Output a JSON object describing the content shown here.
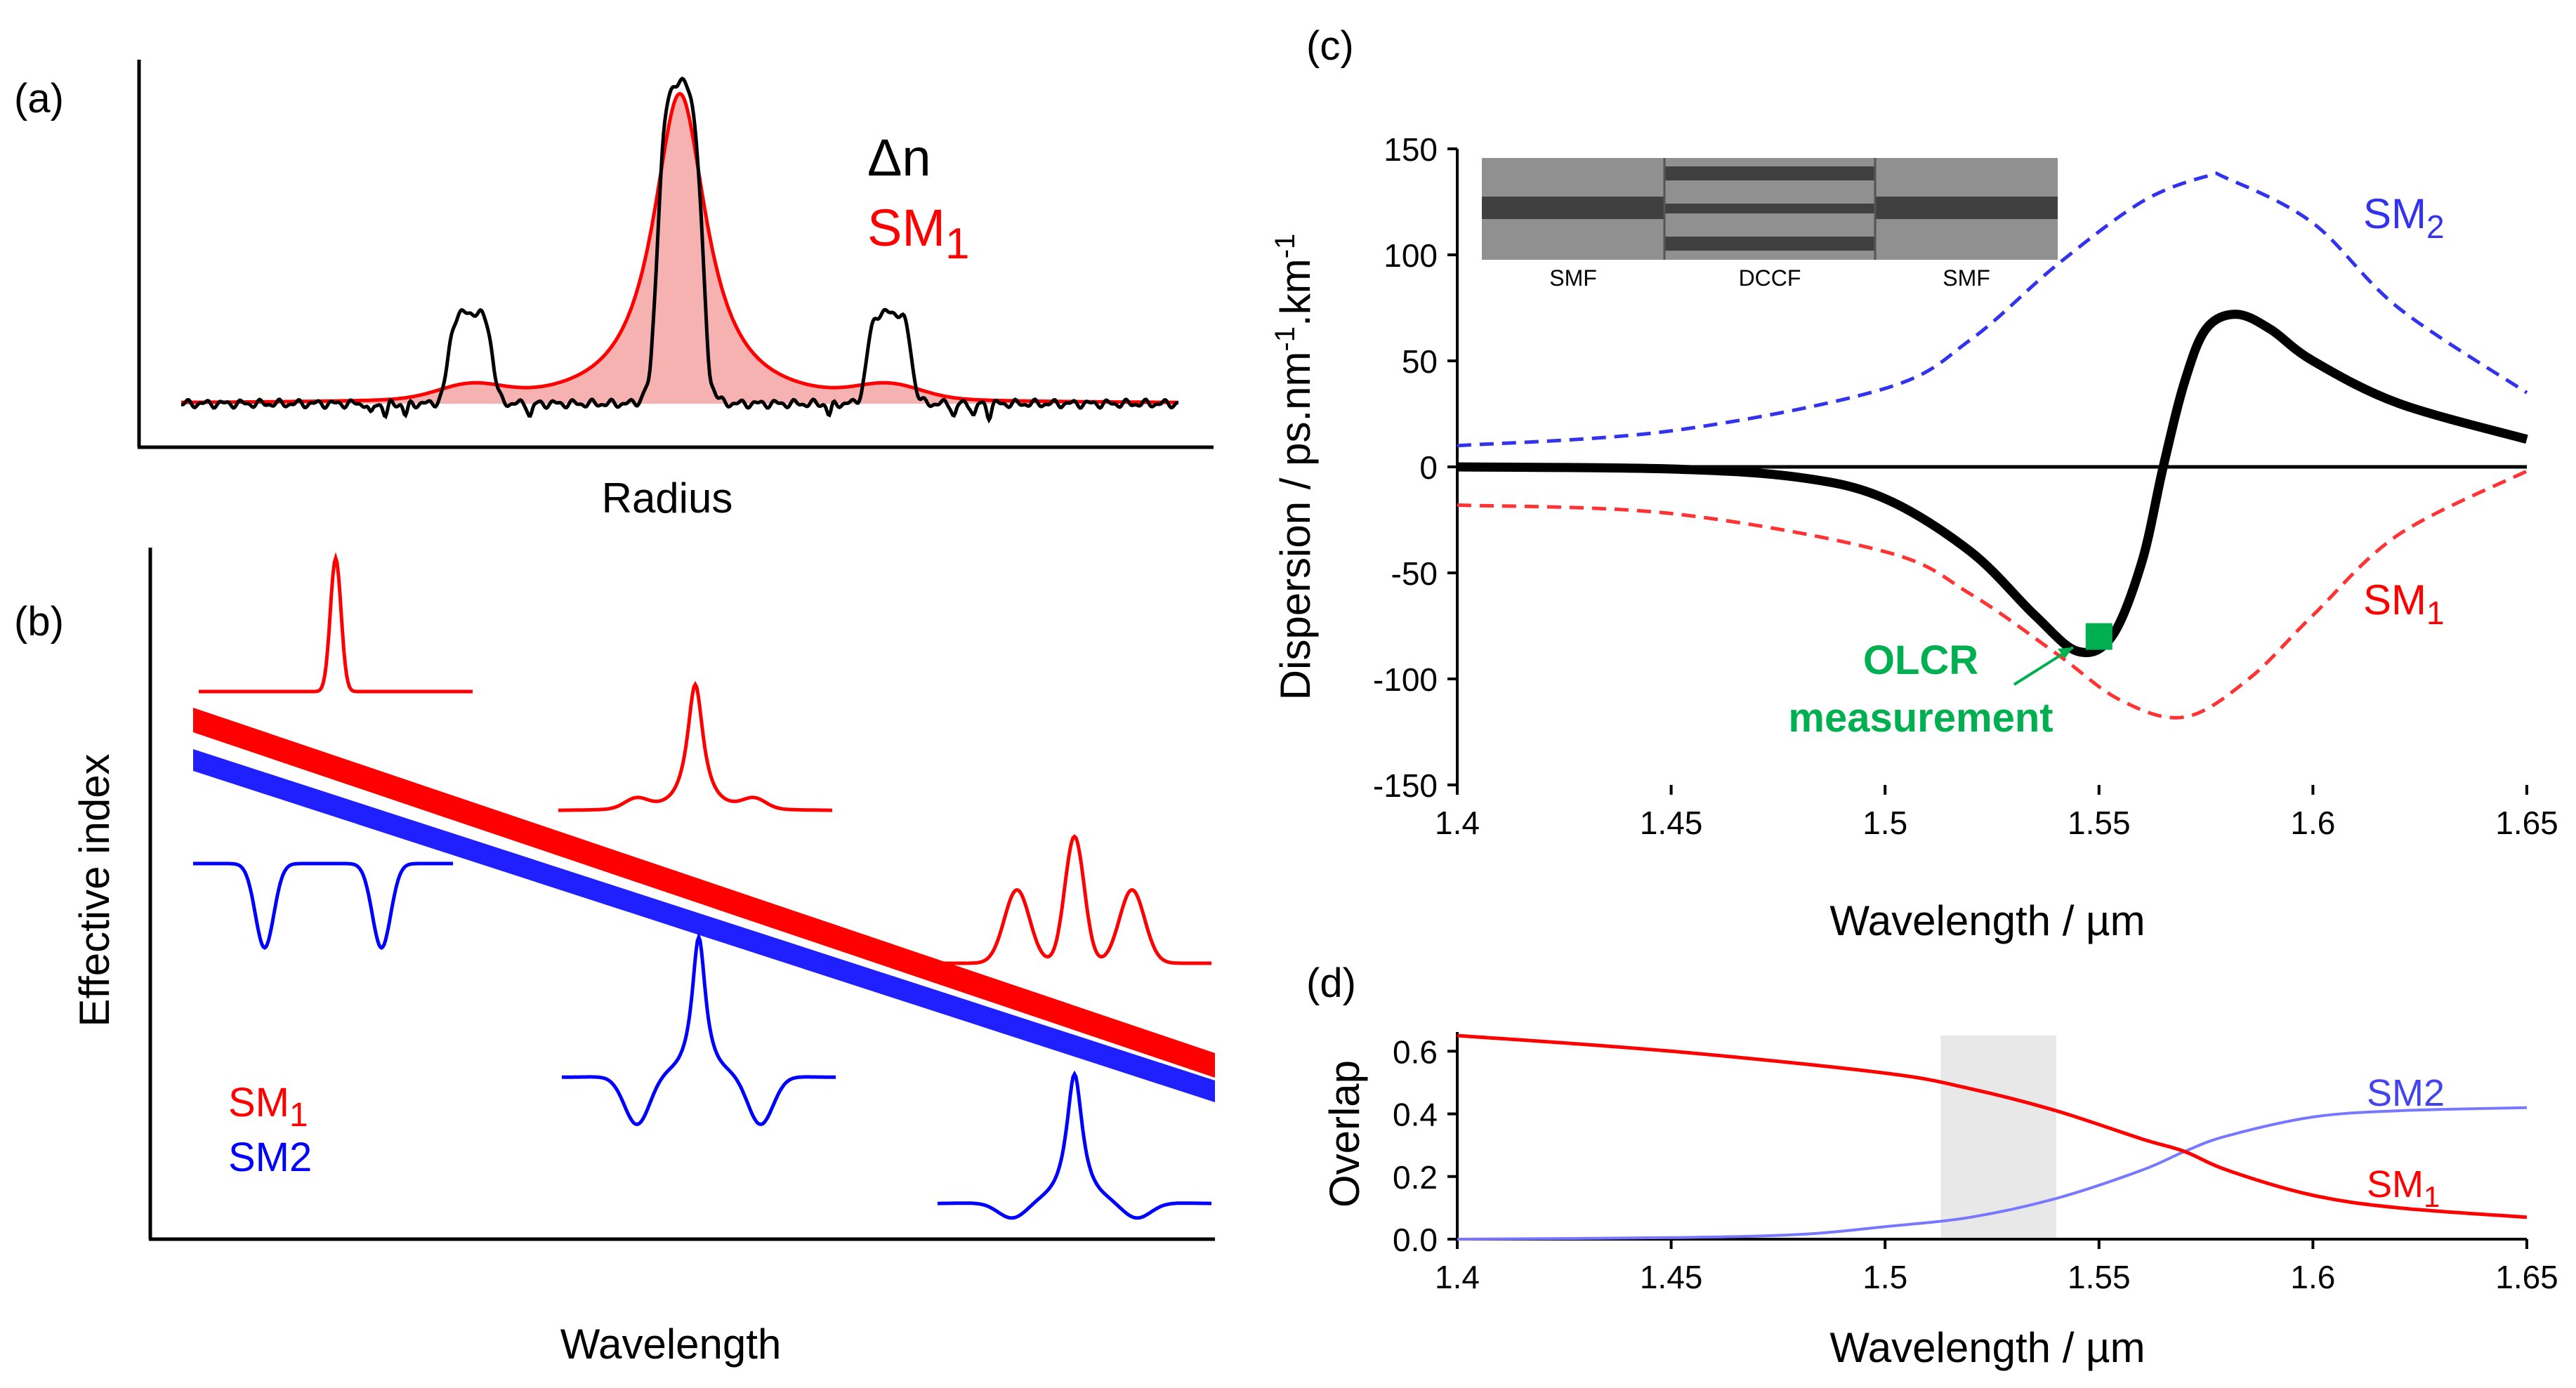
{
  "chart_data": [
    {
      "panel": "(a)",
      "type": "line",
      "title": "",
      "xlabel": "Radius",
      "ylabel": "",
      "legend": [
        "Δn",
        "SM1"
      ],
      "x_range": [
        -1,
        1
      ],
      "series": [
        {
          "name": "Δn",
          "color": "#000000",
          "description_values": {
            "core_level": 1.0,
            "ring_level": 0.28,
            "core_halfwidth": 0.05,
            "ring_center": 0.42,
            "ring_halfwidth": 0.045
          }
        },
        {
          "name": "SM1",
          "color": "#ff0000",
          "fill": "#f4a3a3",
          "description_values": {
            "peak": 0.92,
            "shoulder_level": 0.04
          }
        }
      ]
    },
    {
      "panel": "(b)",
      "type": "line",
      "title": "",
      "xlabel": "Wavelength",
      "ylabel": "Effective index",
      "legend": [
        "SM1",
        "SM2"
      ],
      "series": [
        {
          "name": "SM1",
          "color": "#ff0000",
          "start": 0.87,
          "end": 0.09
        },
        {
          "name": "SM2",
          "color": "#0000ff",
          "start": 0.84,
          "end": 0.06
        }
      ]
    },
    {
      "panel": "(c)",
      "type": "line",
      "title": "",
      "xlabel": "Wavelength / µm",
      "ylabel": "Dispersion  / ps.nm-1.km-1",
      "xlim": [
        1.4,
        1.65
      ],
      "ylim": [
        -150,
        150
      ],
      "xticks": [
        "1.4",
        "1.45",
        "1.5",
        "1.55",
        "1.6",
        "1.65"
      ],
      "yticks": [
        "-150",
        "-100",
        "-50",
        "0",
        "50",
        "100",
        "150"
      ],
      "series": [
        {
          "name": "Total",
          "color": "#000000",
          "style": "solid",
          "x": [
            1.4,
            1.45,
            1.48,
            1.5,
            1.52,
            1.535,
            1.545,
            1.553,
            1.56,
            1.565,
            1.57,
            1.575,
            1.582,
            1.59,
            1.6,
            1.62,
            1.65
          ],
          "y": [
            0,
            -1,
            -5,
            -15,
            -40,
            -70,
            -87,
            -80,
            -45,
            0,
            40,
            65,
            72,
            65,
            50,
            30,
            13
          ]
        },
        {
          "name": "SM2",
          "color": "#3333ee",
          "style": "dashed",
          "x": [
            1.4,
            1.45,
            1.5,
            1.52,
            1.54,
            1.56,
            1.575,
            1.58,
            1.6,
            1.62,
            1.65
          ],
          "y": [
            10,
            17,
            37,
            60,
            95,
            125,
            137,
            136,
            115,
            75,
            35
          ]
        },
        {
          "name": "SM1",
          "color": "#ff3333",
          "style": "dashed",
          "x": [
            1.4,
            1.45,
            1.5,
            1.52,
            1.54,
            1.555,
            1.57,
            1.585,
            1.6,
            1.62,
            1.65
          ],
          "y": [
            -18,
            -22,
            -40,
            -60,
            -88,
            -110,
            -118,
            -100,
            -70,
            -32,
            -2
          ]
        }
      ],
      "marker": {
        "x": 1.55,
        "y": -80,
        "color": "#00b050",
        "label_line1": "OLCR",
        "label_line2": "measurement"
      },
      "inset_labels": [
        "SMF",
        "DCCF",
        "SMF"
      ]
    },
    {
      "panel": "(d)",
      "type": "line",
      "title": "",
      "xlabel": "Wavelength / µm",
      "ylabel": "Overlap",
      "xlim": [
        1.4,
        1.65
      ],
      "ylim": [
        0,
        0.65
      ],
      "xticks": [
        "1.4",
        "1.45",
        "1.5",
        "1.55",
        "1.6",
        "1.65"
      ],
      "yticks": [
        "0.0",
        "0.2",
        "0.4",
        "0.6"
      ],
      "shaded_region": [
        1.513,
        1.54
      ],
      "series": [
        {
          "name": "SM1",
          "color": "#ff0000",
          "x": [
            1.4,
            1.45,
            1.5,
            1.52,
            1.54,
            1.56,
            1.57,
            1.58,
            1.6,
            1.62,
            1.65
          ],
          "y": [
            0.65,
            0.6,
            0.53,
            0.48,
            0.41,
            0.32,
            0.28,
            0.22,
            0.14,
            0.1,
            0.07
          ]
        },
        {
          "name": "SM2",
          "color": "#7777ff",
          "x": [
            1.4,
            1.45,
            1.48,
            1.5,
            1.52,
            1.54,
            1.56,
            1.57,
            1.58,
            1.6,
            1.62,
            1.65
          ],
          "y": [
            0,
            0.005,
            0.015,
            0.04,
            0.07,
            0.13,
            0.22,
            0.28,
            0.33,
            0.39,
            0.41,
            0.42
          ]
        }
      ]
    }
  ],
  "labels": {
    "panel_a": "(a)",
    "panel_b": "(b)",
    "panel_c": "(c)",
    "panel_d": "(d)",
    "a_legend_dn": "Δn",
    "a_legend_sm": "SM",
    "a_legend_sm_sub": "1",
    "a_xlabel": "Radius",
    "b_ylabel": "Effective index",
    "b_xlabel": "Wavelength",
    "b_legend_sm1": "SM",
    "b_legend_sm1_sub": "1",
    "b_legend_sm2": "SM2",
    "c_ylabel_main": "Dispersion  / ps.nm",
    "c_ylabel_sup1": "-1",
    "c_ylabel_mid": ".km",
    "c_ylabel_sup2": "-1",
    "c_xlabel": "Wavelength / µm",
    "c_sm2": "SM",
    "c_sm2_sub": "2",
    "c_sm1": "SM",
    "c_sm1_sub": "1",
    "c_olcr1": "OLCR",
    "c_olcr2": "measurement",
    "c_inset_smf_left": "SMF",
    "c_inset_dccf": "DCCF",
    "c_inset_smf_right": "SMF",
    "d_ylabel": "Overlap",
    "d_xlabel": "Wavelength / µm",
    "d_sm2": "SM2",
    "d_sm1": "SM",
    "d_sm1_sub": "1"
  },
  "colors": {
    "red": "#ff0000",
    "red_fill": "#f4a3a3",
    "blue": "#0000ff",
    "dash_blue": "#3333ee",
    "dash_red": "#ff3333",
    "green": "#00b050",
    "shade": "#e8e8e8"
  }
}
